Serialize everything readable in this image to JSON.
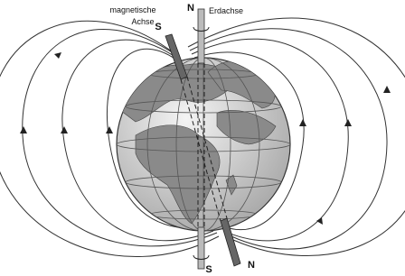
{
  "labels": {
    "magnetic_axis": [
      "magnetische",
      "Achse"
    ],
    "magnetic_south": "S",
    "geographic_north": "N",
    "earth_axis": "Erdachse",
    "geographic_south": "S",
    "magnetic_north": "N"
  }
}
